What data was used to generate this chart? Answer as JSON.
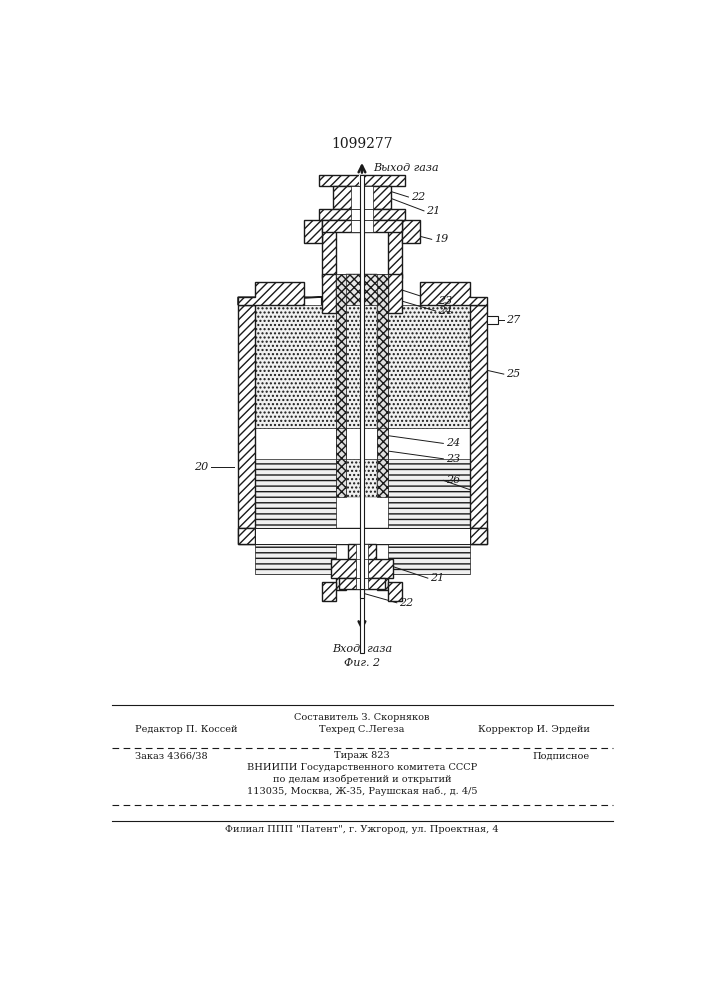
{
  "patent_number": "1099277",
  "bg_color": "#ffffff",
  "line_color": "#1a1a1a",
  "title_font_size": 10,
  "label_font_size": 8,
  "footer_font_size": 7,
  "top_label": "Выход газа",
  "bottom_label": "Вход  газа",
  "fig_label": "Фиг. 2"
}
